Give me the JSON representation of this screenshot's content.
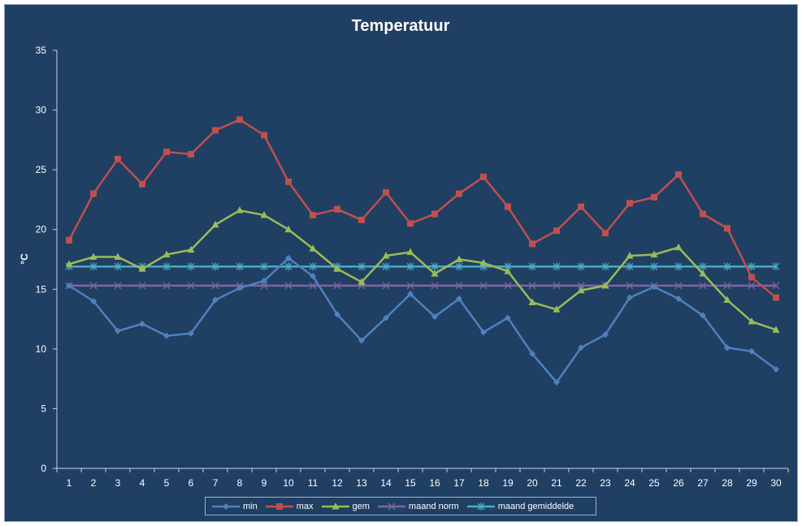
{
  "chart_data": {
    "type": "line",
    "title": "Temperatuur",
    "xlabel": "",
    "ylabel": "°C",
    "ylim": [
      0,
      35
    ],
    "yticks": [
      "0",
      "5",
      "10",
      "15",
      "20",
      "25",
      "30",
      "35"
    ],
    "categories": [
      "1",
      "2",
      "3",
      "4",
      "5",
      "6",
      "7",
      "8",
      "9",
      "10",
      "11",
      "12",
      "13",
      "14",
      "15",
      "16",
      "17",
      "18",
      "19",
      "20",
      "21",
      "22",
      "23",
      "24",
      "25",
      "26",
      "27",
      "28",
      "29",
      "30"
    ],
    "grid": false,
    "legend_position": "bottom",
    "series": [
      {
        "name": "min",
        "color": "#4f81bd",
        "marker": "diamond",
        "values": [
          15.3,
          14.0,
          11.5,
          12.1,
          11.1,
          11.3,
          14.1,
          15.1,
          15.7,
          17.6,
          16.1,
          12.9,
          10.7,
          12.6,
          14.6,
          12.7,
          14.2,
          11.4,
          12.6,
          9.6,
          7.2,
          10.1,
          11.2,
          14.3,
          15.2,
          14.2,
          12.8,
          10.1,
          9.8,
          8.3
        ]
      },
      {
        "name": "max",
        "color": "#c0504d",
        "marker": "square",
        "values": [
          19.1,
          23.0,
          25.9,
          23.8,
          26.5,
          26.3,
          28.3,
          29.2,
          27.9,
          24.0,
          21.2,
          21.7,
          20.8,
          23.1,
          20.5,
          21.3,
          23.0,
          24.4,
          21.9,
          18.8,
          19.9,
          21.9,
          19.7,
          22.2,
          22.7,
          24.6,
          21.3,
          20.1,
          16.0,
          14.3
        ]
      },
      {
        "name": "gem",
        "color": "#9bbb59",
        "marker": "triangle",
        "values": [
          17.1,
          17.7,
          17.7,
          16.7,
          17.9,
          18.3,
          20.4,
          21.6,
          21.2,
          20.0,
          18.4,
          16.7,
          15.6,
          17.8,
          18.1,
          16.3,
          17.5,
          17.2,
          16.5,
          13.9,
          13.3,
          14.9,
          15.3,
          17.8,
          17.9,
          18.5,
          16.3,
          14.1,
          12.3,
          11.6
        ]
      },
      {
        "name": "maand norm",
        "color": "#8064a2",
        "marker": "x",
        "values": [
          15.3,
          15.3,
          15.3,
          15.3,
          15.3,
          15.3,
          15.3,
          15.3,
          15.3,
          15.3,
          15.3,
          15.3,
          15.3,
          15.3,
          15.3,
          15.3,
          15.3,
          15.3,
          15.3,
          15.3,
          15.3,
          15.3,
          15.3,
          15.3,
          15.3,
          15.3,
          15.3,
          15.3,
          15.3,
          15.3
        ]
      },
      {
        "name": "maand gemiddelde",
        "color": "#4bacc6",
        "marker": "star",
        "values": [
          16.9,
          16.9,
          16.9,
          16.9,
          16.9,
          16.9,
          16.9,
          16.9,
          16.9,
          16.9,
          16.9,
          16.9,
          16.9,
          16.9,
          16.9,
          16.9,
          16.9,
          16.9,
          16.9,
          16.9,
          16.9,
          16.9,
          16.9,
          16.9,
          16.9,
          16.9,
          16.9,
          16.9,
          16.9,
          16.9
        ]
      }
    ]
  }
}
